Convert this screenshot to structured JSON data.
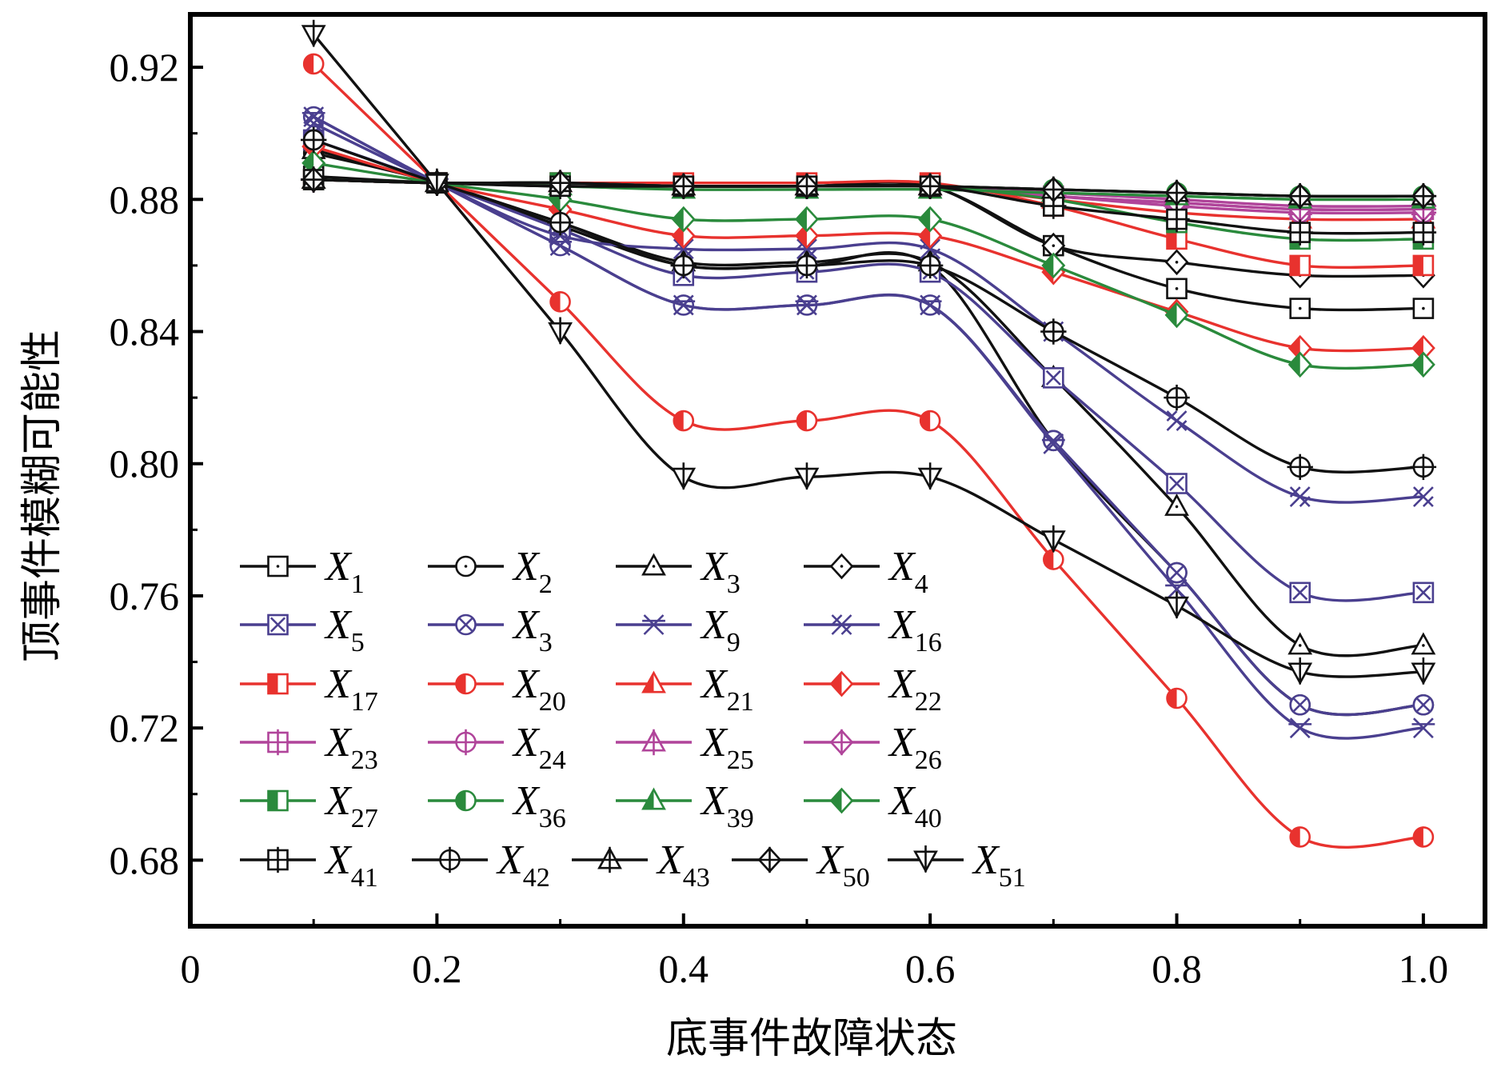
{
  "chart_data": {
    "type": "line",
    "xlabel": "底事件故障状态",
    "ylabel": "顶事件模糊可能性",
    "xlim": [
      0,
      1.05
    ],
    "ylim": [
      0.66,
      0.936
    ],
    "xticks": [
      0,
      0.2,
      0.4,
      0.6,
      0.8,
      1.0
    ],
    "xtick_labels": [
      "0",
      "0.2",
      "0.4",
      "0.6",
      "0.8",
      "1.0"
    ],
    "yticks": [
      0.68,
      0.72,
      0.76,
      0.8,
      0.84,
      0.88,
      0.92
    ],
    "ytick_labels": [
      "0.68",
      "0.72",
      "0.76",
      "0.80",
      "0.84",
      "0.88",
      "0.92"
    ],
    "legend_position": "lower-left",
    "x": [
      0.1,
      0.2,
      0.3,
      0.4,
      0.5,
      0.6,
      0.7,
      0.8,
      0.9,
      1.0
    ],
    "series": [
      {
        "name": "X1",
        "base": "X",
        "sub": "1",
        "color": "#111111",
        "marker": "square",
        "values": [
          0.887,
          0.885,
          0.884,
          0.884,
          0.884,
          0.884,
          0.866,
          0.853,
          0.847,
          0.847
        ]
      },
      {
        "name": "X2",
        "base": "X",
        "sub": "2",
        "color": "#111111",
        "marker": "circle",
        "values": [
          0.894,
          0.885,
          0.872,
          0.86,
          0.86,
          0.86,
          0.807,
          0.767,
          0.727,
          0.727
        ]
      },
      {
        "name": "X3",
        "base": "X",
        "sub": "3",
        "color": "#111111",
        "marker": "triangle",
        "values": [
          0.895,
          0.885,
          0.873,
          0.861,
          0.861,
          0.861,
          0.826,
          0.787,
          0.745,
          0.745
        ]
      },
      {
        "name": "X4",
        "base": "X",
        "sub": "4",
        "color": "#111111",
        "marker": "diamond",
        "values": [
          0.886,
          0.885,
          0.884,
          0.884,
          0.884,
          0.884,
          0.866,
          0.861,
          0.857,
          0.857
        ]
      },
      {
        "name": "X5",
        "base": "X",
        "sub": "5",
        "color": "#4a3f8f",
        "marker": "square-x",
        "values": [
          0.898,
          0.885,
          0.871,
          0.857,
          0.858,
          0.858,
          0.826,
          0.794,
          0.761,
          0.761
        ]
      },
      {
        "name": "X3",
        "base": "X",
        "sub": "3",
        "color": "#4a3f8f",
        "marker": "circle-x",
        "values": [
          0.905,
          0.885,
          0.866,
          0.848,
          0.848,
          0.848,
          0.807,
          0.767,
          0.727,
          0.727
        ]
      },
      {
        "name": "X9",
        "base": "X",
        "sub": "9",
        "color": "#4a3f8f",
        "marker": "star",
        "values": [
          0.905,
          0.885,
          0.866,
          0.848,
          0.848,
          0.848,
          0.806,
          0.762,
          0.72,
          0.72
        ]
      },
      {
        "name": "X16",
        "base": "X",
        "sub": "16",
        "color": "#4a3f8f",
        "marker": "double-x",
        "values": [
          0.903,
          0.885,
          0.869,
          0.865,
          0.865,
          0.865,
          0.84,
          0.813,
          0.79,
          0.79
        ]
      },
      {
        "name": "X17",
        "base": "X",
        "sub": "17",
        "color": "#e8322e",
        "marker": "square-half",
        "values": [
          0.886,
          0.885,
          0.885,
          0.885,
          0.885,
          0.885,
          0.878,
          0.868,
          0.86,
          0.86
        ]
      },
      {
        "name": "X20",
        "base": "X",
        "sub": "20",
        "color": "#e8322e",
        "marker": "circle-half",
        "values": [
          0.921,
          0.885,
          0.849,
          0.813,
          0.813,
          0.813,
          0.771,
          0.729,
          0.687,
          0.687
        ]
      },
      {
        "name": "X21",
        "base": "X",
        "sub": "21",
        "color": "#e8322e",
        "marker": "triangle-half",
        "values": [
          0.886,
          0.885,
          0.885,
          0.884,
          0.884,
          0.884,
          0.88,
          0.876,
          0.874,
          0.874
        ]
      },
      {
        "name": "X22",
        "base": "X",
        "sub": "22",
        "color": "#e8322e",
        "marker": "diamond-half",
        "values": [
          0.896,
          0.885,
          0.877,
          0.869,
          0.869,
          0.869,
          0.858,
          0.846,
          0.835,
          0.835
        ]
      },
      {
        "name": "X23",
        "base": "X",
        "sub": "23",
        "color": "#b0449a",
        "marker": "square-plus",
        "values": [
          0.886,
          0.885,
          0.885,
          0.884,
          0.884,
          0.884,
          0.881,
          0.879,
          0.877,
          0.877
        ]
      },
      {
        "name": "X24",
        "base": "X",
        "sub": "24",
        "color": "#b0449a",
        "marker": "circle-plus",
        "values": [
          0.886,
          0.885,
          0.885,
          0.884,
          0.884,
          0.884,
          0.881,
          0.878,
          0.876,
          0.876
        ]
      },
      {
        "name": "X25",
        "base": "X",
        "sub": "25",
        "color": "#b0449a",
        "marker": "triangle-plus",
        "values": [
          0.886,
          0.885,
          0.885,
          0.884,
          0.884,
          0.884,
          0.882,
          0.88,
          0.878,
          0.878
        ]
      },
      {
        "name": "X26",
        "base": "X",
        "sub": "26",
        "color": "#b0449a",
        "marker": "diamond-plus",
        "values": [
          0.886,
          0.885,
          0.885,
          0.884,
          0.884,
          0.884,
          0.881,
          0.879,
          0.877,
          0.877
        ]
      },
      {
        "name": "X27",
        "base": "X",
        "sub": "27",
        "color": "#2a8a3c",
        "marker": "square-half",
        "values": [
          0.886,
          0.885,
          0.885,
          0.884,
          0.884,
          0.884,
          0.88,
          0.873,
          0.868,
          0.868
        ]
      },
      {
        "name": "X36",
        "base": "X",
        "sub": "36",
        "color": "#2a8a3c",
        "marker": "circle-half",
        "values": [
          0.886,
          0.885,
          0.885,
          0.884,
          0.884,
          0.884,
          0.883,
          0.882,
          0.881,
          0.881
        ]
      },
      {
        "name": "X39",
        "base": "X",
        "sub": "39",
        "color": "#2a8a3c",
        "marker": "triangle-half",
        "values": [
          0.886,
          0.885,
          0.884,
          0.883,
          0.883,
          0.883,
          0.882,
          0.881,
          0.88,
          0.88
        ]
      },
      {
        "name": "X40",
        "base": "X",
        "sub": "40",
        "color": "#2a8a3c",
        "marker": "diamond-half",
        "values": [
          0.891,
          0.885,
          0.88,
          0.874,
          0.874,
          0.874,
          0.86,
          0.845,
          0.83,
          0.83
        ]
      },
      {
        "name": "X41",
        "base": "X",
        "sub": "41",
        "color": "#111111",
        "marker": "square-plus",
        "values": [
          0.886,
          0.885,
          0.884,
          0.884,
          0.884,
          0.884,
          0.878,
          0.874,
          0.87,
          0.87
        ]
      },
      {
        "name": "X42",
        "base": "X",
        "sub": "42",
        "color": "#111111",
        "marker": "circle-plus",
        "values": [
          0.898,
          0.885,
          0.873,
          0.86,
          0.86,
          0.86,
          0.84,
          0.82,
          0.799,
          0.799
        ]
      },
      {
        "name": "X43",
        "base": "X",
        "sub": "43",
        "color": "#111111",
        "marker": "triangle-plus",
        "values": [
          0.886,
          0.885,
          0.885,
          0.884,
          0.884,
          0.884,
          0.883,
          0.882,
          0.881,
          0.881
        ]
      },
      {
        "name": "X50",
        "base": "X",
        "sub": "50",
        "color": "#111111",
        "marker": "diamond-plus",
        "values": [
          0.886,
          0.885,
          0.885,
          0.884,
          0.884,
          0.884,
          0.883,
          0.882,
          0.881,
          0.881
        ]
      },
      {
        "name": "X51",
        "base": "X",
        "sub": "51",
        "color": "#111111",
        "marker": "triangle-down",
        "values": [
          0.93,
          0.885,
          0.84,
          0.796,
          0.796,
          0.796,
          0.777,
          0.757,
          0.737,
          0.737
        ]
      }
    ]
  }
}
